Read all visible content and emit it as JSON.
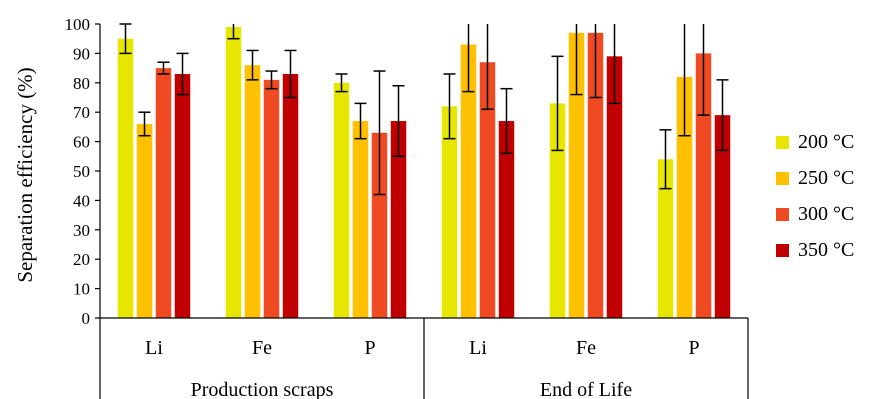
{
  "chart_data": {
    "type": "bar",
    "ylabel": "Separation efficiency (%)",
    "xlabel": "",
    "ylim": [
      0,
      100
    ],
    "yticks": [
      "0",
      "10",
      "20",
      "30",
      "40",
      "50",
      "60",
      "70",
      "80",
      "90",
      "100"
    ],
    "legend_position": "right",
    "grid": false,
    "groups": [
      {
        "label": "Production scraps",
        "categories": [
          "Li",
          "Fe",
          "P"
        ]
      },
      {
        "label": "End of Life",
        "categories": [
          "Li",
          "Fe",
          "P"
        ]
      }
    ],
    "categories": [
      "Li",
      "Fe",
      "P",
      "Li",
      "Fe",
      "P"
    ],
    "series": [
      {
        "name": "200 °C",
        "color": "#e6e600",
        "values": [
          95,
          99,
          80,
          72,
          73,
          54
        ],
        "error": [
          5,
          4,
          3,
          11,
          16,
          10
        ]
      },
      {
        "name": "250 °C",
        "color": "#ffc000",
        "values": [
          66,
          86,
          67,
          93,
          97,
          82
        ],
        "error": [
          4,
          5,
          6,
          16,
          21,
          20
        ]
      },
      {
        "name": "300 °C",
        "color": "#f04a23",
        "values": [
          85,
          81,
          63,
          87,
          97,
          90
        ],
        "error": [
          2,
          3,
          21,
          16,
          22,
          21
        ]
      },
      {
        "name": "350 °C",
        "color": "#c00000",
        "values": [
          83,
          83,
          67,
          67,
          89,
          69
        ],
        "error": [
          7,
          8,
          12,
          11,
          16,
          12
        ]
      }
    ]
  }
}
